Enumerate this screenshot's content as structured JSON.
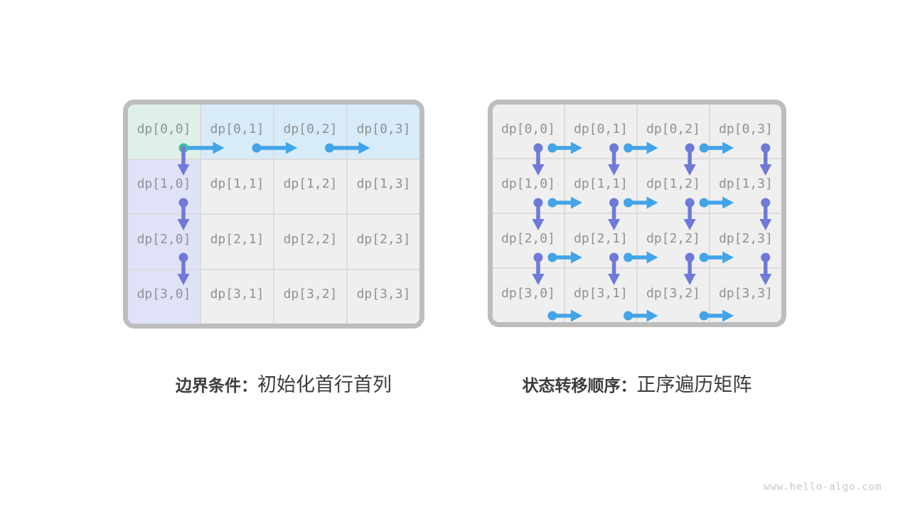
{
  "watermark": "www.hello-algo.com",
  "colors": {
    "blue": "#42a4e9",
    "purple": "#6e79d9",
    "teal": "#3ebea5",
    "cell_green": "#dff0e9",
    "cell_blue": "#d7ebf8",
    "cell_purple": "#e0e3f7",
    "cell_gray": "#efefef",
    "grid_line": "#dcdcdc",
    "grid_border": "#bdbdbd",
    "label_text": "#8e9295",
    "caption_text": "#3c3c3c",
    "watermark_text": "#c9c9c9"
  },
  "panels": [
    {
      "name": "boundary-conditions",
      "caption_bold": "边界条件：",
      "caption_regular": "初始化首行首列",
      "cells": [
        {
          "label": "dp[0,0]",
          "bg": "green"
        },
        {
          "label": "dp[0,1]",
          "bg": "blue"
        },
        {
          "label": "dp[0,2]",
          "bg": "blue"
        },
        {
          "label": "dp[0,3]",
          "bg": "blue"
        },
        {
          "label": "dp[1,0]",
          "bg": "purple"
        },
        {
          "label": "dp[1,1]",
          "bg": "gray"
        },
        {
          "label": "dp[1,2]",
          "bg": "gray"
        },
        {
          "label": "dp[1,3]",
          "bg": "gray"
        },
        {
          "label": "dp[2,0]",
          "bg": "purple"
        },
        {
          "label": "dp[2,1]",
          "bg": "gray"
        },
        {
          "label": "dp[2,2]",
          "bg": "gray"
        },
        {
          "label": "dp[2,3]",
          "bg": "gray"
        },
        {
          "label": "dp[3,0]",
          "bg": "purple"
        },
        {
          "label": "dp[3,1]",
          "bg": "gray"
        },
        {
          "label": "dp[3,2]",
          "bg": "gray"
        },
        {
          "label": "dp[3,3]",
          "bg": "gray"
        }
      ],
      "arrows": [
        {
          "dir": "right",
          "row": 0,
          "col": 0,
          "color": "blue",
          "dot": "teal"
        },
        {
          "dir": "right",
          "row": 0,
          "col": 1,
          "color": "blue",
          "dot": "blue"
        },
        {
          "dir": "right",
          "row": 0,
          "col": 2,
          "color": "blue",
          "dot": "blue"
        },
        {
          "dir": "down",
          "row": 0,
          "col": 0,
          "color": "purple",
          "dot": "teal"
        },
        {
          "dir": "down",
          "row": 1,
          "col": 0,
          "color": "purple",
          "dot": "purple"
        },
        {
          "dir": "down",
          "row": 2,
          "col": 0,
          "color": "purple",
          "dot": "purple"
        }
      ]
    },
    {
      "name": "state-transition-order",
      "caption_bold": "状态转移顺序：",
      "caption_regular": "正序遍历矩阵",
      "cells": [
        {
          "label": "dp[0,0]",
          "bg": "gray"
        },
        {
          "label": "dp[0,1]",
          "bg": "gray"
        },
        {
          "label": "dp[0,2]",
          "bg": "gray"
        },
        {
          "label": "dp[0,3]",
          "bg": "gray"
        },
        {
          "label": "dp[1,0]",
          "bg": "gray"
        },
        {
          "label": "dp[1,1]",
          "bg": "gray"
        },
        {
          "label": "dp[1,2]",
          "bg": "gray"
        },
        {
          "label": "dp[1,3]",
          "bg": "gray"
        },
        {
          "label": "dp[2,0]",
          "bg": "gray"
        },
        {
          "label": "dp[2,1]",
          "bg": "gray"
        },
        {
          "label": "dp[2,2]",
          "bg": "gray"
        },
        {
          "label": "dp[2,3]",
          "bg": "gray"
        },
        {
          "label": "dp[3,0]",
          "bg": "gray"
        },
        {
          "label": "dp[3,1]",
          "bg": "gray"
        },
        {
          "label": "dp[3,2]",
          "bg": "gray"
        },
        {
          "label": "dp[3,3]",
          "bg": "gray"
        }
      ],
      "arrows": [
        {
          "dir": "down",
          "row": 0,
          "col": 0,
          "color": "purple",
          "dot": "purple"
        },
        {
          "dir": "down",
          "row": 0,
          "col": 1,
          "color": "purple",
          "dot": "purple"
        },
        {
          "dir": "down",
          "row": 0,
          "col": 2,
          "color": "purple",
          "dot": "purple"
        },
        {
          "dir": "down",
          "row": 0,
          "col": 3,
          "color": "purple",
          "dot": "purple"
        },
        {
          "dir": "right",
          "row": 0,
          "col": 0,
          "color": "blue",
          "dot": "blue"
        },
        {
          "dir": "right",
          "row": 0,
          "col": 1,
          "color": "blue",
          "dot": "blue"
        },
        {
          "dir": "right",
          "row": 0,
          "col": 2,
          "color": "blue",
          "dot": "blue"
        },
        {
          "dir": "down",
          "row": 1,
          "col": 0,
          "color": "purple",
          "dot": "purple"
        },
        {
          "dir": "down",
          "row": 1,
          "col": 1,
          "color": "purple",
          "dot": "purple"
        },
        {
          "dir": "down",
          "row": 1,
          "col": 2,
          "color": "purple",
          "dot": "purple"
        },
        {
          "dir": "down",
          "row": 1,
          "col": 3,
          "color": "purple",
          "dot": "purple"
        },
        {
          "dir": "right",
          "row": 1,
          "col": 0,
          "color": "blue",
          "dot": "blue"
        },
        {
          "dir": "right",
          "row": 1,
          "col": 1,
          "color": "blue",
          "dot": "blue"
        },
        {
          "dir": "right",
          "row": 1,
          "col": 2,
          "color": "blue",
          "dot": "blue"
        },
        {
          "dir": "down",
          "row": 2,
          "col": 0,
          "color": "purple",
          "dot": "purple"
        },
        {
          "dir": "down",
          "row": 2,
          "col": 1,
          "color": "purple",
          "dot": "purple"
        },
        {
          "dir": "down",
          "row": 2,
          "col": 2,
          "color": "purple",
          "dot": "purple"
        },
        {
          "dir": "down",
          "row": 2,
          "col": 3,
          "color": "purple",
          "dot": "purple"
        },
        {
          "dir": "right",
          "row": 2,
          "col": 0,
          "color": "blue",
          "dot": "blue"
        },
        {
          "dir": "right",
          "row": 2,
          "col": 1,
          "color": "blue",
          "dot": "blue"
        },
        {
          "dir": "right",
          "row": 2,
          "col": 2,
          "color": "blue",
          "dot": "blue"
        },
        {
          "dir": "right",
          "row": 3,
          "col": 0,
          "color": "blue",
          "dot": "blue"
        },
        {
          "dir": "right",
          "row": 3,
          "col": 1,
          "color": "blue",
          "dot": "blue"
        },
        {
          "dir": "right",
          "row": 3,
          "col": 2,
          "color": "blue",
          "dot": "blue"
        }
      ]
    }
  ]
}
